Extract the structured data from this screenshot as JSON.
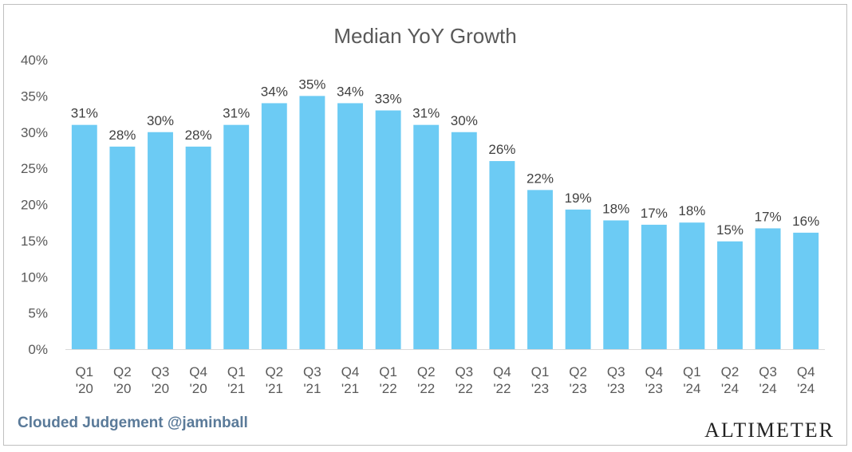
{
  "chart_data": {
    "type": "bar",
    "title": "Median YoY Growth",
    "xlabel": "",
    "ylabel": "",
    "ylim": [
      0,
      40
    ],
    "yticks": [
      "0%",
      "5%",
      "10%",
      "15%",
      "20%",
      "25%",
      "30%",
      "35%",
      "40%"
    ],
    "grid": false,
    "legend": "none",
    "bar_color": "#6ccbf4",
    "categories": [
      [
        "Q1",
        "'20"
      ],
      [
        "Q2",
        "'20"
      ],
      [
        "Q3",
        "'20"
      ],
      [
        "Q4",
        "'20"
      ],
      [
        "Q1",
        "'21"
      ],
      [
        "Q2",
        "'21"
      ],
      [
        "Q3",
        "'21"
      ],
      [
        "Q4",
        "'21"
      ],
      [
        "Q1",
        "'22"
      ],
      [
        "Q2",
        "'22"
      ],
      [
        "Q3",
        "'22"
      ],
      [
        "Q4",
        "'22"
      ],
      [
        "Q1",
        "'23"
      ],
      [
        "Q2",
        "'23"
      ],
      [
        "Q3",
        "'23"
      ],
      [
        "Q4",
        "'23"
      ],
      [
        "Q1",
        "'24"
      ],
      [
        "Q2",
        "'24"
      ],
      [
        "Q3",
        "'24"
      ],
      [
        "Q4",
        "'24"
      ]
    ],
    "values": [
      31,
      28,
      30,
      28,
      31,
      34,
      35,
      34,
      33,
      31,
      30,
      26,
      22,
      19.3,
      17.8,
      17.2,
      17.5,
      14.9,
      16.7,
      16.1
    ],
    "data_labels": [
      "31%",
      "28%",
      "30%",
      "28%",
      "31%",
      "34%",
      "35%",
      "34%",
      "33%",
      "31%",
      "30%",
      "26%",
      "22%",
      "19%",
      "18%",
      "17%",
      "18%",
      "15%",
      "17%",
      "16%"
    ]
  },
  "footer": {
    "source": "Clouded Judgement @jaminball",
    "brand": "ALTIMETER"
  }
}
